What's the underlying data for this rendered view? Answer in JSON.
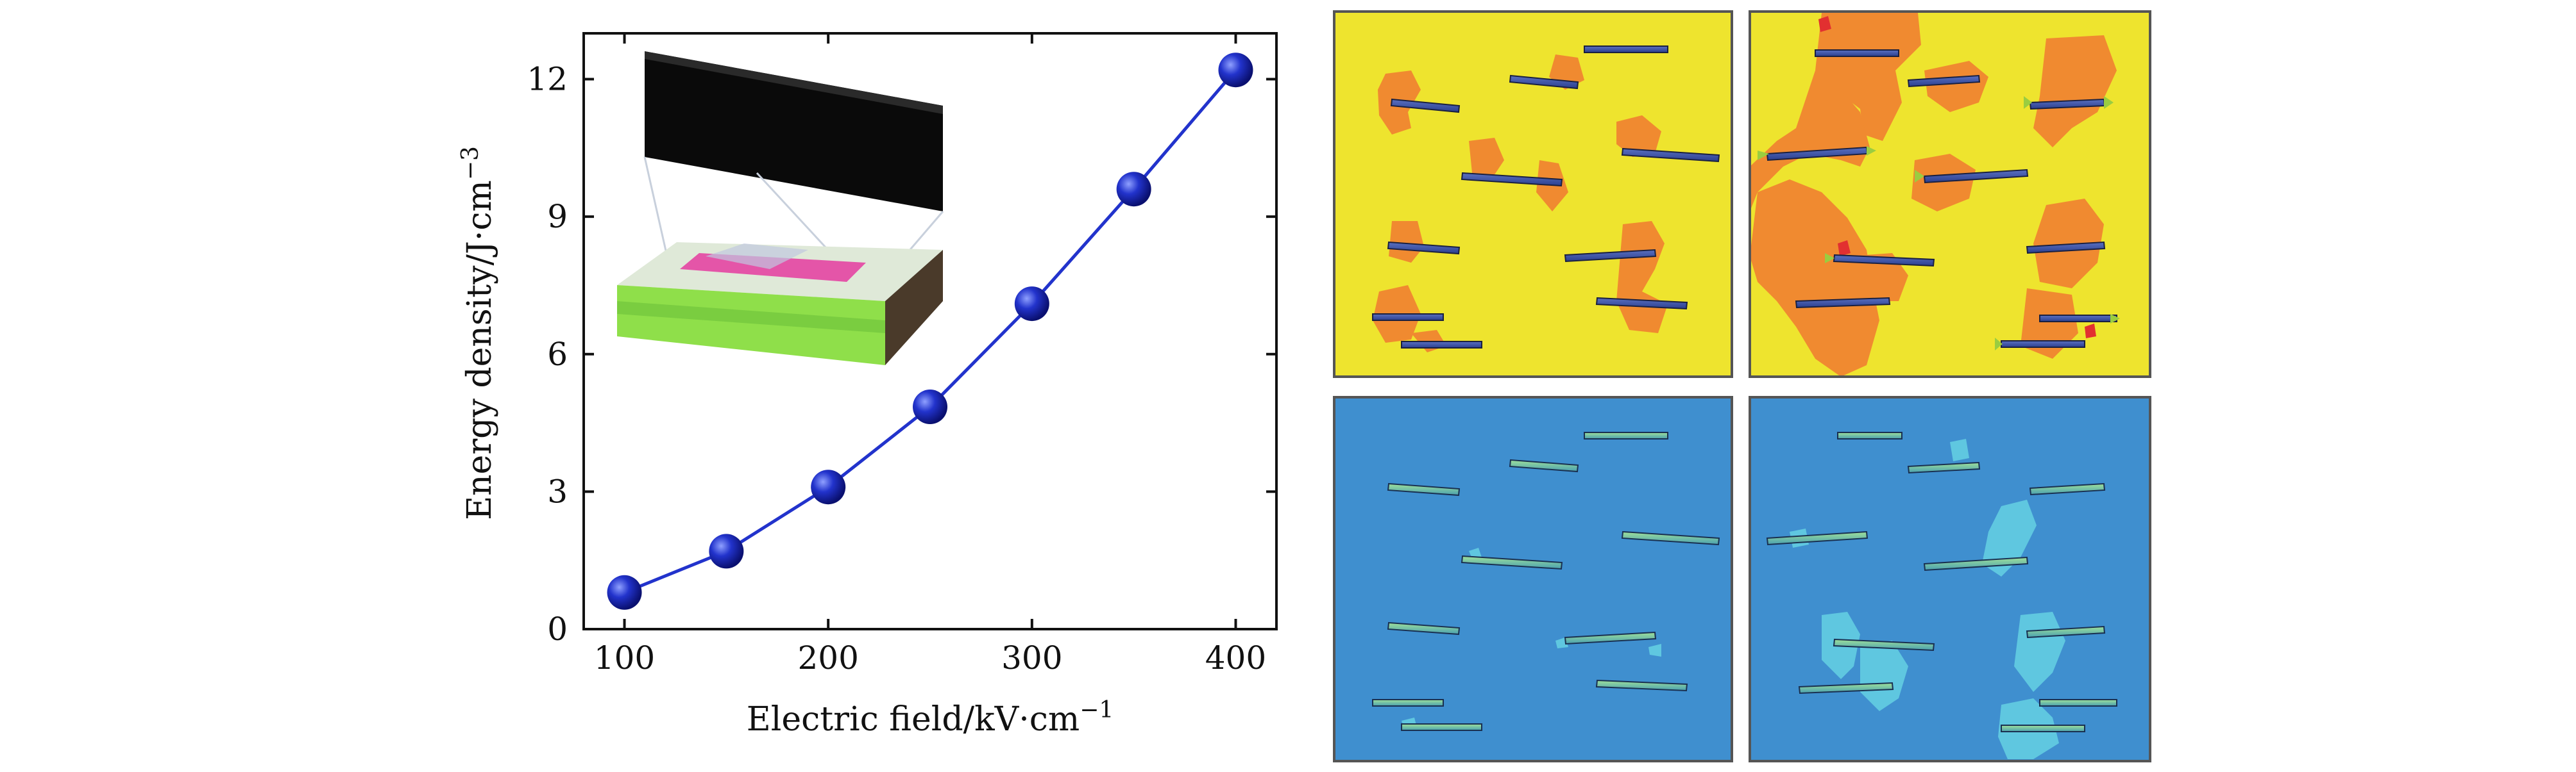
{
  "chart_data": {
    "type": "line",
    "xlabel": "Electric field/kV·cm",
    "xlabel_sup": "−1",
    "ylabel": "Energy density/J·cm",
    "ylabel_sup": "−3",
    "xlim": [
      80,
      420
    ],
    "ylim": [
      0,
      13
    ],
    "xticks": [
      100,
      200,
      300,
      400
    ],
    "yticks": [
      0,
      3,
      6,
      9,
      12
    ],
    "series": [
      {
        "x": [
          100,
          150,
          200,
          250,
          300,
          350,
          400
        ],
        "y": [
          0.8,
          1.7,
          3.1,
          4.85,
          7.1,
          9.6,
          12.2
        ],
        "color": "#2233cc"
      }
    ],
    "grid": false,
    "inset": "3D composite film schematic with black top electrode, pink/green layered film"
  },
  "colors": {
    "series": "#2233cc",
    "yellow_bg": "#eee42e",
    "orange_region": "#f08a30",
    "blue_bg": "#3f8fcf",
    "cyan_region": "#5fc7e0",
    "fiber": "#3a4fa0"
  },
  "panels": {
    "top_left": "orange regions around fibers on yellow field",
    "top_right": "larger orange connected regions on yellow field",
    "bottom_left": "blue field with fibers, few cyan spots",
    "bottom_right": "blue field with fibers and cyan regions"
  }
}
